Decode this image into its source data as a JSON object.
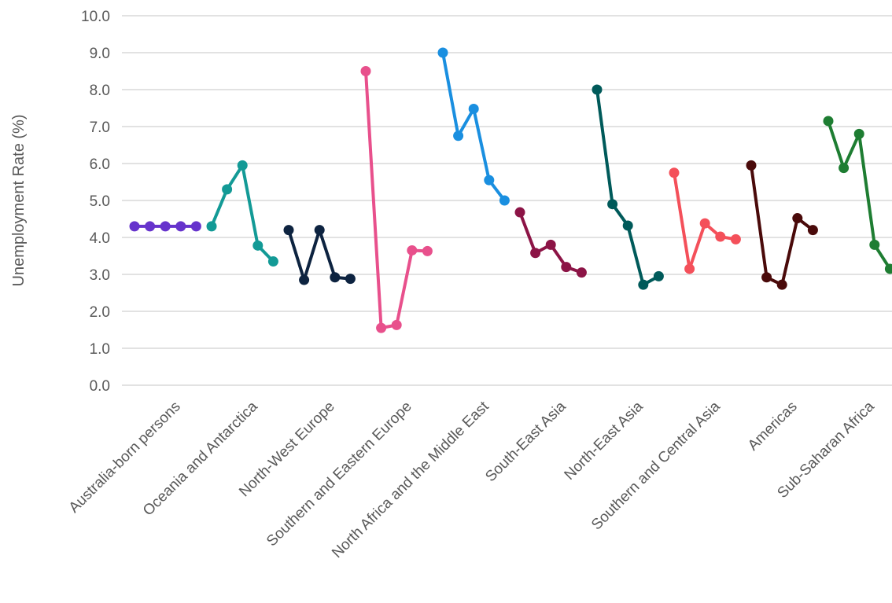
{
  "chart_data": {
    "type": "line",
    "title": "",
    "xlabel": "",
    "ylabel": "Unemployment Rate (%)",
    "ylim": [
      0,
      10
    ],
    "yticks": [
      "0.0",
      "1.0",
      "2.0",
      "3.0",
      "4.0",
      "5.0",
      "6.0",
      "7.0",
      "8.0",
      "9.0",
      "10.0"
    ],
    "grid": true,
    "legend": "none",
    "groups": [
      {
        "label": "Australia-born persons",
        "color": "#6633cc",
        "values": [
          4.3,
          4.3,
          4.3,
          4.3,
          4.3
        ]
      },
      {
        "label": "Oceania and Antarctica",
        "color": "#139a96",
        "values": [
          4.3,
          5.3,
          5.95,
          3.78,
          3.35
        ]
      },
      {
        "label": "North-West Europe",
        "color": "#0d2340",
        "values": [
          4.2,
          2.85,
          4.2,
          2.92,
          2.88
        ]
      },
      {
        "label": "Southern and Eastern Europe",
        "color": "#e8508c",
        "values": [
          8.5,
          1.55,
          1.63,
          3.65,
          3.63
        ]
      },
      {
        "label": "North Africa and the Middle East",
        "color": "#1a8fe0",
        "values": [
          9.0,
          6.75,
          7.48,
          5.55,
          5.0
        ]
      },
      {
        "label": "South-East Asia",
        "color": "#8c1446",
        "values": [
          4.68,
          3.58,
          3.8,
          3.2,
          3.05
        ]
      },
      {
        "label": "North-East Asia",
        "color": "#005a5a",
        "values": [
          8.0,
          4.9,
          4.32,
          2.72,
          2.95
        ]
      },
      {
        "label": "Southern and Central Asia",
        "color": "#f4505a",
        "values": [
          5.75,
          3.15,
          4.38,
          4.02,
          3.95
        ]
      },
      {
        "label": "Americas",
        "color": "#4a0a0a",
        "values": [
          5.95,
          2.92,
          2.72,
          4.52,
          4.2
        ]
      },
      {
        "label": "Sub-Saharan Africa",
        "color": "#1e7d32",
        "values": [
          7.15,
          5.88,
          6.8,
          3.8,
          3.15
        ]
      }
    ]
  }
}
